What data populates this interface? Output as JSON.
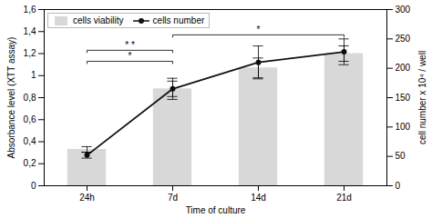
{
  "chart_data": {
    "type": "bar",
    "xlabel": "Time of culture",
    "ylabel": "Absorbance level (XTT assay)",
    "y2label": "cell number x 10⁴ / well",
    "categories": [
      "24h",
      "7d",
      "14d",
      "21d"
    ],
    "series": [
      {
        "name": "cells viability",
        "type": "bar",
        "color": "#d8d8d8",
        "values": [
          0.33,
          0.88,
          1.07,
          1.2
        ],
        "errors": [
          0.025,
          0.07,
          0.09,
          0.07
        ]
      },
      {
        "name": "cells number",
        "type": "line",
        "axis": "y2",
        "color": "#111111",
        "marker": "o",
        "values": [
          52,
          165,
          210,
          228
        ],
        "errors": [
          5,
          18,
          28,
          22
        ]
      }
    ],
    "ylim": [
      0,
      1.6
    ],
    "yticks": [
      0,
      {
        "value": 0.2,
        "label": "0,2"
      },
      {
        "value": 0.4,
        "label": "0,4"
      },
      {
        "value": 0.6,
        "label": "0,6"
      },
      {
        "value": 0.8,
        "label": "0,8"
      },
      1,
      {
        "value": 1.2,
        "label": "1,2"
      },
      {
        "value": 1.4,
        "label": "1,4"
      },
      {
        "value": 1.6,
        "label": "1,6"
      }
    ],
    "y2lim": [
      0,
      300
    ],
    "y2ticks": [
      0,
      50,
      100,
      150,
      200,
      250,
      300
    ],
    "legend": "upper left",
    "annotations": [
      {
        "x1": "24h",
        "x2": "7d",
        "y": 1.23,
        "label": "* *"
      },
      {
        "x1": "24h",
        "x2": "7d",
        "y": 1.13,
        "label": "*"
      },
      {
        "x1": "7d",
        "x2": "21d",
        "y": 1.37,
        "label": "*"
      }
    ]
  }
}
